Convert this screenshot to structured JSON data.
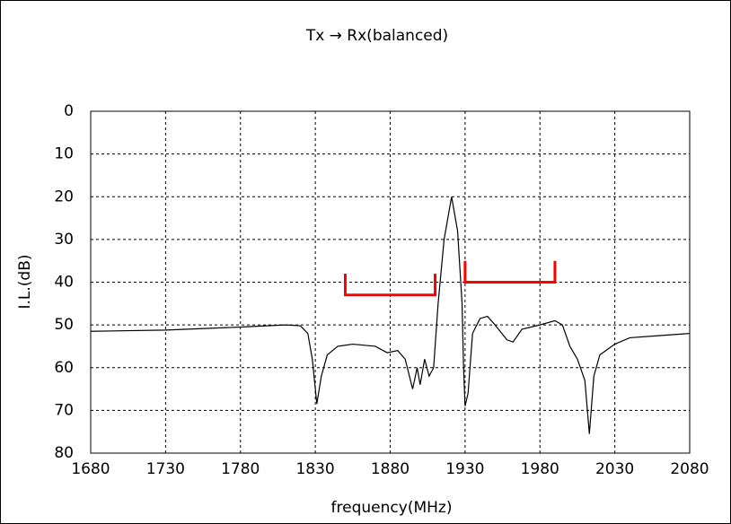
{
  "chart_data": {
    "type": "line",
    "title": "Tx → Rx(balanced)",
    "x_label": "frequency(MHz)",
    "y_label": "I.L.(dB)",
    "xlim": [
      1680,
      2080
    ],
    "xticks": [
      1680,
      1730,
      1780,
      1830,
      1880,
      1930,
      1980,
      2030,
      2080
    ],
    "ylim": [
      80,
      0
    ],
    "yticks": [
      0,
      10,
      20,
      30,
      40,
      50,
      60,
      70,
      80
    ],
    "grid": true,
    "series": [
      {
        "color": "#000000",
        "x": [
          1680,
          1730,
          1780,
          1810,
          1820,
          1825,
          1828,
          1831,
          1834,
          1838,
          1845,
          1855,
          1870,
          1878,
          1885,
          1890,
          1895,
          1898,
          1900,
          1903,
          1906,
          1909,
          1912,
          1916,
          1921,
          1925,
          1928,
          1929,
          1930,
          1932,
          1935,
          1940,
          1945,
          1950,
          1958,
          1962,
          1968,
          1980,
          1990,
          1995,
          2000,
          2005,
          2010,
          2013,
          2016,
          2020,
          2030,
          2040,
          2060,
          2080
        ],
        "values": [
          51.5,
          51.2,
          50.5,
          50,
          50.2,
          52,
          58,
          68.5,
          62,
          57,
          55,
          54.5,
          55,
          56.5,
          56,
          58,
          65,
          60,
          64,
          58,
          62,
          60,
          45,
          30,
          20,
          28,
          45,
          60,
          69,
          66,
          52,
          48.5,
          48,
          50,
          53.5,
          54,
          51,
          50,
          49,
          50,
          55,
          58,
          63,
          75.5,
          62,
          57,
          54.5,
          53,
          52.5,
          52
        ]
      },
      {
        "color": "#ff0000",
        "x": [
          1850,
          1850,
          1910,
          1910
        ],
        "values": [
          38,
          43,
          43,
          38
        ]
      },
      {
        "color": "#ff0000",
        "x": [
          1930,
          1930,
          1990,
          1990
        ],
        "values": [
          35,
          40,
          40,
          35
        ]
      }
    ]
  }
}
